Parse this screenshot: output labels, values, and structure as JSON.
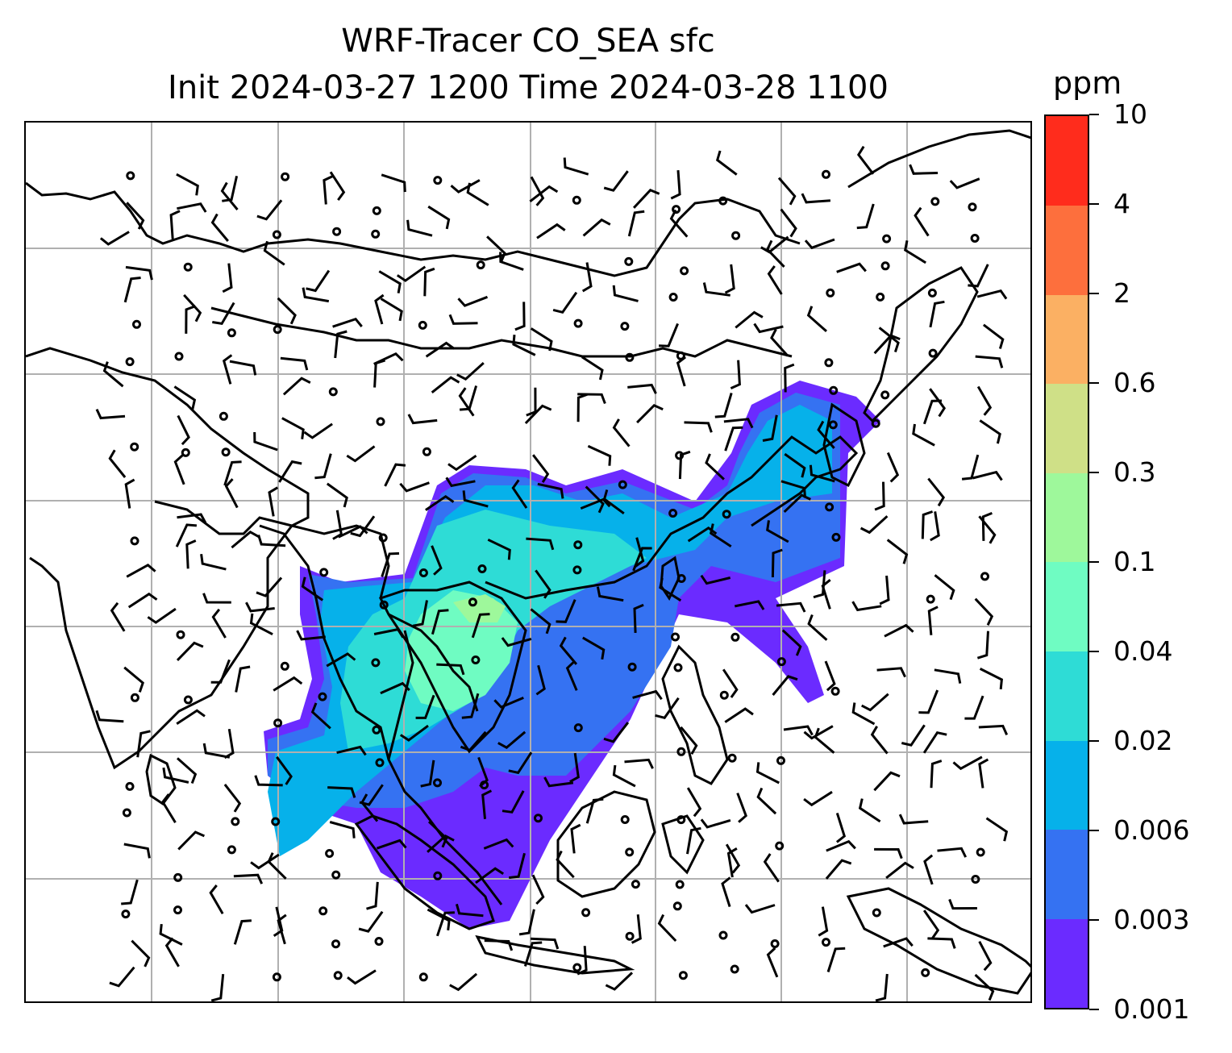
{
  "title": {
    "line1": "WRF-Tracer CO_SEA sfc",
    "line2": "Init 2024-03-27 1200 Time 2024-03-28 1100"
  },
  "colorbar": {
    "unit": "ppm",
    "ticks": [
      "0.001",
      "0.003",
      "0.006",
      "0.02",
      "0.04",
      "0.1",
      "0.3",
      "0.6",
      "2",
      "4",
      "10"
    ],
    "colors": [
      "#6b2bff",
      "#3572f2",
      "#06b1ea",
      "#2edcd6",
      "#6ffcc2",
      "#9ef89b",
      "#cfe087",
      "#fbb063",
      "#fd6f3d",
      "#ff2c1c"
    ]
  },
  "map": {
    "gridlines": true,
    "coastlines_color": "#000000",
    "wind_barbs": true
  }
}
